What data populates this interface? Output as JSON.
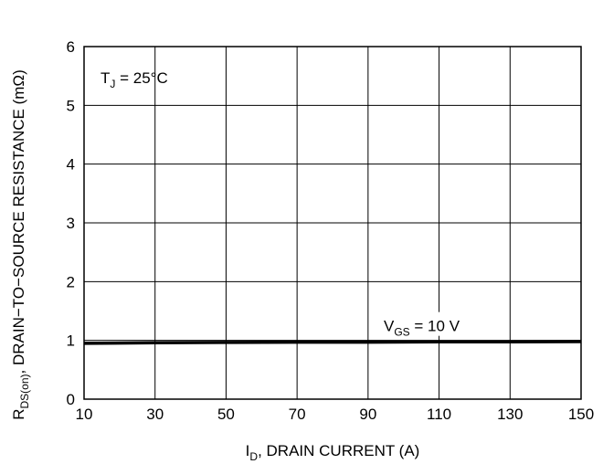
{
  "chart_data": {
    "type": "line",
    "title": "",
    "xlabel": {
      "main": "I",
      "sub": "D",
      "rest": ", DRAIN CURRENT (A)"
    },
    "ylabel": {
      "main": "R",
      "sub": "DS(on)",
      "rest": ", DRAIN−TO−SOURCE RESISTANCE (mΩ)"
    },
    "xlim": [
      10,
      150
    ],
    "ylim": [
      0,
      6
    ],
    "x_ticks": [
      10,
      30,
      50,
      70,
      90,
      110,
      130,
      150
    ],
    "y_ticks": [
      0,
      1,
      2,
      3,
      4,
      5,
      6
    ],
    "grid": true,
    "annotations": [
      {
        "main": "T",
        "sub": "J",
        "rest": " = 25°C"
      },
      {
        "main": "V",
        "sub": "GS",
        "rest": " = 10 V"
      }
    ],
    "series": [
      {
        "x": [
          10,
          30,
          50,
          70,
          90,
          110,
          130,
          150
        ],
        "y": [
          0.95,
          0.96,
          0.965,
          0.97,
          0.97,
          0.975,
          0.975,
          0.98
        ]
      }
    ]
  }
}
